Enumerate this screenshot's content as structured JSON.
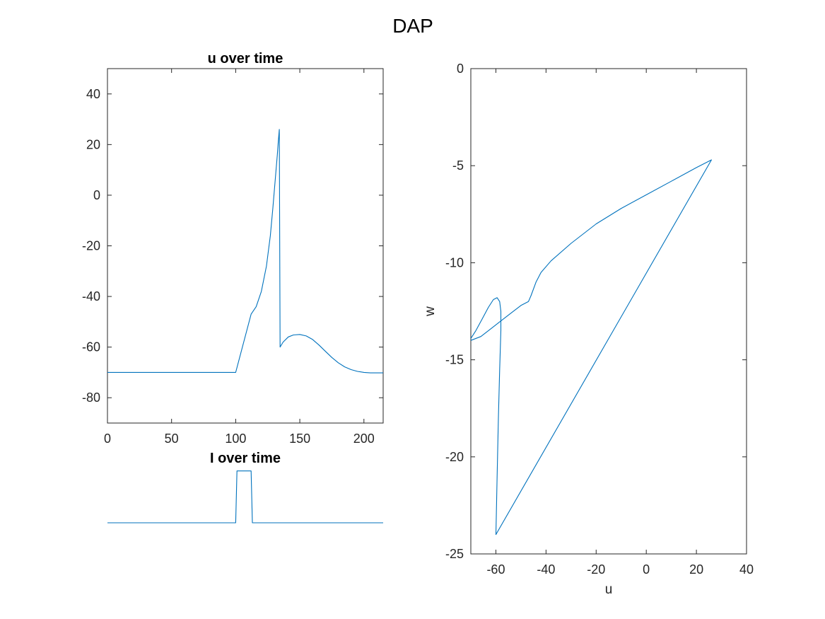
{
  "figure": {
    "title": "DAP",
    "line_color": "#0072BD",
    "axes_color": "#262626"
  },
  "chart_data": [
    {
      "type": "line",
      "title": "u over time",
      "xlabel": "",
      "ylabel": "",
      "xlim": [
        0,
        215
      ],
      "ylim": [
        -90,
        50
      ],
      "xticks": [
        0,
        50,
        100,
        150,
        200
      ],
      "yticks": [
        -80,
        -60,
        -40,
        -20,
        0,
        20,
        40
      ],
      "grid": false,
      "series": [
        {
          "x": [
            0,
            100,
            112,
            116,
            120,
            124,
            127,
            129,
            130.5,
            131.5,
            132.5,
            133.2,
            134,
            134.6,
            137,
            141,
            145,
            150,
            155,
            160,
            165,
            170,
            175,
            180,
            185,
            190,
            195,
            200,
            205,
            210,
            215
          ],
          "y": [
            -70,
            -70,
            -47,
            -44,
            -38,
            -28,
            -16,
            -5,
            4,
            10,
            16,
            21,
            26,
            -60,
            -58,
            -56,
            -55.2,
            -55,
            -55.6,
            -57,
            -59.2,
            -61.7,
            -64.1,
            -66.2,
            -67.8,
            -68.9,
            -69.6,
            -70,
            -70.2,
            -70.2,
            -70.2
          ]
        }
      ]
    },
    {
      "type": "line",
      "title": "I over time",
      "xlabel": "",
      "ylabel": "",
      "xlim": [
        0,
        215
      ],
      "ylim": [
        -0.15,
        1.05
      ],
      "grid": false,
      "series": [
        {
          "x": [
            0,
            100,
            101,
            112,
            113,
            215
          ],
          "y": [
            0,
            0,
            1,
            1,
            0,
            0
          ]
        }
      ]
    },
    {
      "type": "line",
      "title": "",
      "xlabel": "u",
      "ylabel": "w",
      "xlim": [
        -70,
        40
      ],
      "ylim": [
        -25,
        0
      ],
      "xticks": [
        -60,
        -40,
        -20,
        0,
        20,
        40
      ],
      "yticks": [
        -25,
        -20,
        -15,
        -10,
        -5,
        0
      ],
      "grid": false,
      "series": [
        {
          "x": [
            -70,
            -66,
            -62,
            -58,
            -54,
            -50,
            -47,
            -46,
            -44,
            -42,
            -38,
            -30,
            -20,
            -10,
            0,
            10,
            20,
            26,
            26,
            -60,
            -59.5,
            -59,
            -58.5,
            -58,
            -58,
            -58.5,
            -59.5,
            -61,
            -63,
            -65.5,
            -68,
            -70
          ],
          "y": [
            -14,
            -13.8,
            -13.4,
            -13,
            -12.6,
            -12.2,
            -12,
            -11.7,
            -11,
            -10.5,
            -9.9,
            -9,
            -8,
            -7.2,
            -6.5,
            -5.8,
            -5.1,
            -4.7,
            -4.7,
            -24,
            -21,
            -18,
            -15.5,
            -13.5,
            -12.5,
            -12,
            -11.8,
            -11.9,
            -12.3,
            -12.9,
            -13.5,
            -13.9
          ]
        }
      ]
    }
  ]
}
